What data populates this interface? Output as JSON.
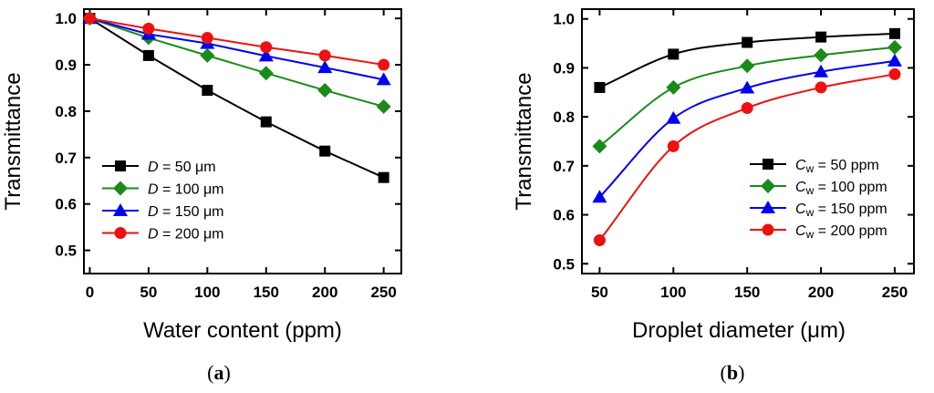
{
  "colors": {
    "black": "#000000",
    "green": "#1a8a1a",
    "blue": "#0000ee",
    "red": "#ee1111"
  },
  "chart_data": [
    {
      "type": "line",
      "caption_letter": "a",
      "xlabel": "Water content (ppm)",
      "ylabel": "Transmittance",
      "xlim": [
        -5,
        265
      ],
      "ylim": [
        0.45,
        1.02
      ],
      "xticks": [
        "0",
        "50",
        "100",
        "150",
        "200",
        "250"
      ],
      "yticks": [
        "0.5",
        "0.6",
        "0.7",
        "0.8",
        "0.9",
        "1.0"
      ],
      "legend_position": "bottom-left",
      "x": [
        0,
        50,
        100,
        150,
        200,
        250
      ],
      "series": [
        {
          "legend_sym": "D",
          "legend_rest": " = 50 μm",
          "marker": "square",
          "color": "#000000",
          "values": [
            1.0,
            0.92,
            0.845,
            0.777,
            0.714,
            0.657
          ]
        },
        {
          "legend_sym": "D",
          "legend_rest": " = 100 μm",
          "marker": "diamond",
          "color": "#1a8a1a",
          "values": [
            1.0,
            0.958,
            0.92,
            0.882,
            0.845,
            0.81
          ]
        },
        {
          "legend_sym": "D",
          "legend_rest": " = 150 μm",
          "marker": "triangle",
          "color": "#0000ee",
          "values": [
            1.0,
            0.966,
            0.946,
            0.919,
            0.894,
            0.868
          ]
        },
        {
          "legend_sym": "D",
          "legend_rest": " = 200 μm",
          "marker": "circle",
          "color": "#ee1111",
          "values": [
            1.0,
            0.978,
            0.958,
            0.938,
            0.92,
            0.9
          ]
        }
      ]
    },
    {
      "type": "line",
      "caption_letter": "b",
      "xlabel": "Droplet diameter (μm)",
      "ylabel": "Transmittance",
      "xlim": [
        38,
        263
      ],
      "ylim": [
        0.48,
        1.02
      ],
      "xticks": [
        "50",
        "100",
        "150",
        "200",
        "250"
      ],
      "yticks": [
        "0.5",
        "0.6",
        "0.7",
        "0.8",
        "0.9",
        "1.0"
      ],
      "legend_position": "bottom-right",
      "x": [
        50,
        100,
        150,
        200,
        250
      ],
      "series": [
        {
          "legend_sym": "C",
          "legend_sub": "w",
          "legend_rest": " = 50 ppm",
          "marker": "square",
          "color": "#000000",
          "values": [
            0.86,
            0.928,
            0.952,
            0.963,
            0.97
          ]
        },
        {
          "legend_sym": "C",
          "legend_sub": "w",
          "legend_rest": " = 100 ppm",
          "marker": "diamond",
          "color": "#1a8a1a",
          "values": [
            0.74,
            0.86,
            0.904,
            0.926,
            0.942
          ]
        },
        {
          "legend_sym": "C",
          "legend_sub": "w",
          "legend_rest": " = 150 ppm",
          "marker": "triangle",
          "color": "#0000ee",
          "values": [
            0.636,
            0.797,
            0.859,
            0.892,
            0.914
          ]
        },
        {
          "legend_sym": "C",
          "legend_sub": "w",
          "legend_rest": " = 200 ppm",
          "marker": "circle",
          "color": "#ee1111",
          "values": [
            0.548,
            0.74,
            0.818,
            0.86,
            0.887
          ]
        }
      ]
    }
  ]
}
